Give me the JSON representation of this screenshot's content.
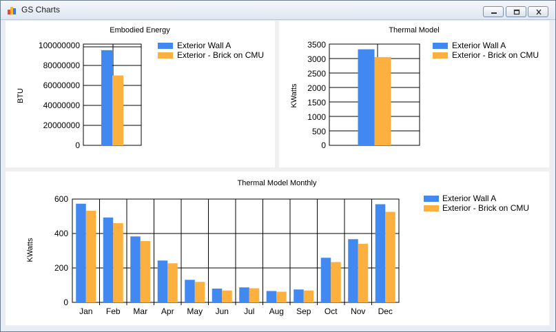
{
  "window": {
    "title": "GS Charts",
    "icon": "chart-app-icon",
    "controls": [
      "minimize-icon",
      "maximize-icon",
      "close-icon"
    ]
  },
  "charts": {
    "embodied": {
      "title": "Embodied Energy",
      "ylabel": "BTU",
      "ticks": [
        "100000000",
        "80000000",
        "60000000",
        "40000000",
        "20000000",
        "0"
      ],
      "legend": [
        "Exterior Wall A",
        "Exterior - Brick on CMU"
      ]
    },
    "thermal": {
      "title": "Thermal Model",
      "ylabel": "KWatts",
      "ticks": [
        "3500",
        "3000",
        "2500",
        "2000",
        "1500",
        "1000",
        "500",
        "0"
      ],
      "legend": [
        "Exterior Wall A",
        "Exterior - Brick on CMU"
      ]
    },
    "monthly": {
      "title": "Thermal Model Monthly",
      "ylabel": "KWatts",
      "ticks": [
        "600",
        "400",
        "200",
        "0"
      ],
      "legend": [
        "Exterior Wall A",
        "Exterior - Brick on CMU"
      ]
    }
  },
  "chart_data": [
    {
      "type": "bar",
      "title": "Embodied Energy",
      "ylabel": "BTU",
      "ylim": [
        0,
        100000000
      ],
      "categories": [
        ""
      ],
      "series": [
        {
          "name": "Exterior Wall A",
          "color": "#4189f0",
          "values": [
            94000000
          ]
        },
        {
          "name": "Exterior - Brick on CMU",
          "color": "#fbb040",
          "values": [
            69000000
          ]
        }
      ],
      "grid": true,
      "legend": "top-right"
    },
    {
      "type": "bar",
      "title": "Thermal Model",
      "ylabel": "KWatts",
      "ylim": [
        0,
        3500
      ],
      "categories": [
        ""
      ],
      "series": [
        {
          "name": "Exterior Wall A",
          "color": "#4189f0",
          "values": [
            3320
          ]
        },
        {
          "name": "Exterior - Brick on CMU",
          "color": "#fbb040",
          "values": [
            3050
          ]
        }
      ],
      "grid": true,
      "legend": "top-right"
    },
    {
      "type": "bar",
      "title": "Thermal Model Monthly",
      "ylabel": "KWatts",
      "ylim": [
        0,
        600
      ],
      "categories": [
        "Jan",
        "Feb",
        "Mar",
        "Apr",
        "May",
        "Jun",
        "Jul",
        "Aug",
        "Sep",
        "Oct",
        "Nov",
        "Dec"
      ],
      "series": [
        {
          "name": "Exterior Wall A",
          "color": "#4189f0",
          "values": [
            573,
            493,
            383,
            243,
            131,
            80,
            87,
            66,
            75,
            259,
            367,
            570
          ]
        },
        {
          "name": "Exterior - Brick on CMU",
          "color": "#fbb040",
          "values": [
            532,
            460,
            356,
            227,
            119,
            69,
            82,
            62,
            69,
            234,
            340,
            526
          ]
        }
      ],
      "grid": true,
      "legend": "top-right"
    }
  ]
}
